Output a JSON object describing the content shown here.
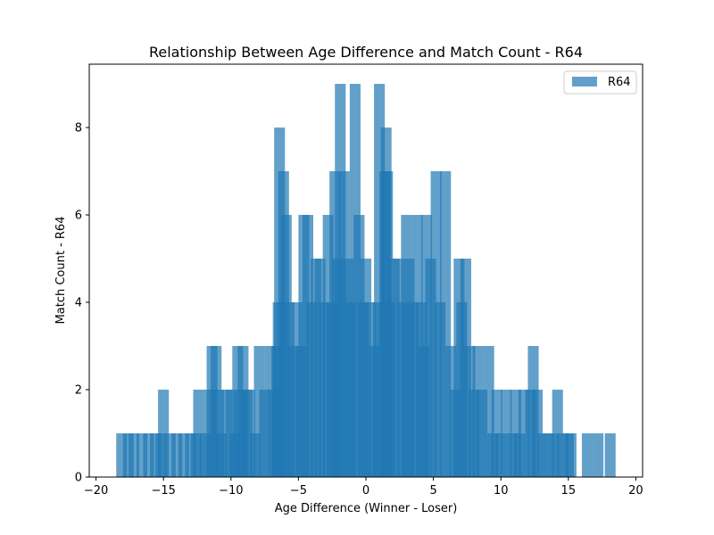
{
  "chart_data": {
    "type": "bar",
    "title": "Relationship Between Age Difference and Match Count - R64",
    "xlabel": "Age Difference (Winner - Loser)",
    "ylabel": "Match Count - R64",
    "xlim": [
      -20.5,
      20.5
    ],
    "ylim": [
      0,
      9.45
    ],
    "xticks": [
      -20,
      -15,
      -10,
      -5,
      0,
      5,
      10,
      15,
      20
    ],
    "xtick_labels": [
      "−20",
      "−15",
      "−10",
      "−5",
      "0",
      "5",
      "10",
      "15",
      "20"
    ],
    "yticks": [
      0,
      2,
      4,
      6,
      8
    ],
    "ytick_labels": [
      "0",
      "2",
      "4",
      "6",
      "8"
    ],
    "bar_width": 0.8,
    "grid": false,
    "legend": "top-right",
    "series": [
      {
        "name": "R64",
        "color": "#1f77b4",
        "alpha": 0.7,
        "points": [
          {
            "x": -18.1,
            "y": 1
          },
          {
            "x": -17.6,
            "y": 1
          },
          {
            "x": -17.2,
            "y": 1
          },
          {
            "x": -16.6,
            "y": 1
          },
          {
            "x": -16.1,
            "y": 1
          },
          {
            "x": -15.6,
            "y": 1
          },
          {
            "x": -15.2,
            "y": 1
          },
          {
            "x": -15.0,
            "y": 2
          },
          {
            "x": -14.5,
            "y": 1
          },
          {
            "x": -14.0,
            "y": 1
          },
          {
            "x": -13.5,
            "y": 1
          },
          {
            "x": -13.0,
            "y": 1
          },
          {
            "x": -12.6,
            "y": 1
          },
          {
            "x": -12.4,
            "y": 2
          },
          {
            "x": -11.9,
            "y": 1
          },
          {
            "x": -11.6,
            "y": 2
          },
          {
            "x": -11.4,
            "y": 3
          },
          {
            "x": -11.1,
            "y": 3
          },
          {
            "x": -10.9,
            "y": 2
          },
          {
            "x": -10.7,
            "y": 1
          },
          {
            "x": -10.3,
            "y": 2
          },
          {
            "x": -10.0,
            "y": 2
          },
          {
            "x": -9.7,
            "y": 1
          },
          {
            "x": -9.5,
            "y": 3
          },
          {
            "x": -9.3,
            "y": 2
          },
          {
            "x": -9.1,
            "y": 3
          },
          {
            "x": -8.8,
            "y": 2
          },
          {
            "x": -8.6,
            "y": 2
          },
          {
            "x": -8.2,
            "y": 1
          },
          {
            "x": -7.9,
            "y": 3
          },
          {
            "x": -7.5,
            "y": 2
          },
          {
            "x": -7.1,
            "y": 3
          },
          {
            "x": -6.8,
            "y": 2
          },
          {
            "x": -6.6,
            "y": 3
          },
          {
            "x": -6.5,
            "y": 4
          },
          {
            "x": -6.4,
            "y": 8
          },
          {
            "x": -6.1,
            "y": 7
          },
          {
            "x": -5.9,
            "y": 6
          },
          {
            "x": -5.7,
            "y": 4
          },
          {
            "x": -5.4,
            "y": 3
          },
          {
            "x": -5.1,
            "y": 4
          },
          {
            "x": -4.8,
            "y": 3
          },
          {
            "x": -4.6,
            "y": 6
          },
          {
            "x": -4.3,
            "y": 6
          },
          {
            "x": -4.0,
            "y": 4
          },
          {
            "x": -3.7,
            "y": 5
          },
          {
            "x": -3.4,
            "y": 5
          },
          {
            "x": -3.1,
            "y": 4
          },
          {
            "x": -2.8,
            "y": 6
          },
          {
            "x": -2.5,
            "y": 4
          },
          {
            "x": -2.3,
            "y": 7
          },
          {
            "x": -2.1,
            "y": 5
          },
          {
            "x": -1.9,
            "y": 9
          },
          {
            "x": -1.6,
            "y": 7
          },
          {
            "x": -1.3,
            "y": 5
          },
          {
            "x": -1.1,
            "y": 4
          },
          {
            "x": -0.8,
            "y": 9
          },
          {
            "x": -0.5,
            "y": 6
          },
          {
            "x": -0.2,
            "y": 4
          },
          {
            "x": 0.0,
            "y": 5
          },
          {
            "x": 0.3,
            "y": 4
          },
          {
            "x": 0.6,
            "y": 3
          },
          {
            "x": 0.9,
            "y": 4
          },
          {
            "x": 1.0,
            "y": 9
          },
          {
            "x": 1.4,
            "y": 7
          },
          {
            "x": 1.5,
            "y": 8
          },
          {
            "x": 1.6,
            "y": 7
          },
          {
            "x": 1.8,
            "y": 4
          },
          {
            "x": 2.1,
            "y": 5
          },
          {
            "x": 2.4,
            "y": 5
          },
          {
            "x": 2.7,
            "y": 4
          },
          {
            "x": 3.0,
            "y": 6
          },
          {
            "x": 3.2,
            "y": 5
          },
          {
            "x": 3.5,
            "y": 4
          },
          {
            "x": 3.8,
            "y": 6
          },
          {
            "x": 4.1,
            "y": 4
          },
          {
            "x": 4.3,
            "y": 3
          },
          {
            "x": 4.5,
            "y": 6
          },
          {
            "x": 4.8,
            "y": 5
          },
          {
            "x": 5.2,
            "y": 7
          },
          {
            "x": 5.5,
            "y": 4
          },
          {
            "x": 5.9,
            "y": 7
          },
          {
            "x": 6.3,
            "y": 3
          },
          {
            "x": 6.6,
            "y": 2
          },
          {
            "x": 6.9,
            "y": 5
          },
          {
            "x": 7.1,
            "y": 4
          },
          {
            "x": 7.4,
            "y": 5
          },
          {
            "x": 7.7,
            "y": 3
          },
          {
            "x": 8.0,
            "y": 2
          },
          {
            "x": 8.3,
            "y": 3
          },
          {
            "x": 8.6,
            "y": 2
          },
          {
            "x": 9.1,
            "y": 3
          },
          {
            "x": 9.4,
            "y": 1
          },
          {
            "x": 9.7,
            "y": 2
          },
          {
            "x": 10.0,
            "y": 1
          },
          {
            "x": 10.4,
            "y": 2
          },
          {
            "x": 10.8,
            "y": 1
          },
          {
            "x": 11.1,
            "y": 2
          },
          {
            "x": 11.4,
            "y": 1
          },
          {
            "x": 11.7,
            "y": 2
          },
          {
            "x": 12.2,
            "y": 2
          },
          {
            "x": 12.4,
            "y": 3
          },
          {
            "x": 12.7,
            "y": 2
          },
          {
            "x": 13.1,
            "y": 1
          },
          {
            "x": 13.5,
            "y": 1
          },
          {
            "x": 13.9,
            "y": 1
          },
          {
            "x": 14.2,
            "y": 2
          },
          {
            "x": 14.6,
            "y": 1
          },
          {
            "x": 15.0,
            "y": 1
          },
          {
            "x": 15.2,
            "y": 1
          },
          {
            "x": 16.4,
            "y": 1
          },
          {
            "x": 17.2,
            "y": 1
          },
          {
            "x": 18.1,
            "y": 1
          }
        ]
      }
    ]
  }
}
